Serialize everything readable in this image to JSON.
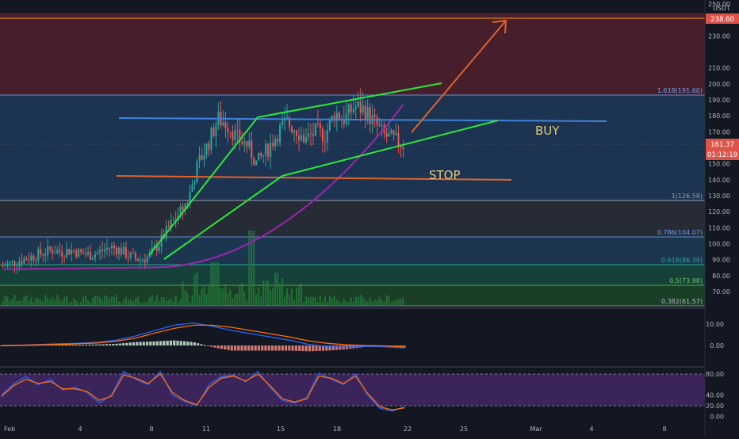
{
  "axis": {
    "currency": "USDT",
    "price_ticks": [
      "250.00",
      "240.00",
      "230.00",
      "210.00",
      "200.00",
      "190.00",
      "180.00",
      "170.00",
      "160.00",
      "150.00",
      "140.00",
      "130.00",
      "120.00",
      "110.00",
      "100.00",
      "90.00",
      "80.00",
      "70.00"
    ],
    "macd_ticks": [
      "10.00",
      "0.00"
    ],
    "stoch_ticks": [
      "80.00",
      "40.00",
      "20.00",
      "0.00"
    ],
    "x_ticks": [
      "Feb",
      "4",
      "8",
      "11",
      "15",
      "18",
      "22",
      "25",
      "Mar",
      "4",
      "8"
    ]
  },
  "price_labels": {
    "target": "238.60",
    "last": "161.37",
    "countdown": "01:12:19"
  },
  "fib_labels": [
    "1.618(191.60)",
    "1(126.58)",
    "0.786(104.07)",
    "0.618(86.39)",
    "0.5(73.98)",
    "0.382(61.57)"
  ],
  "annotations": {
    "buy": "BUY",
    "stop": "STOP"
  },
  "colors": {
    "bg": "#131722",
    "up": "#26a69a",
    "down": "#ef5350",
    "wedge": "#2ee63a",
    "resistance": "#3f83d9",
    "stop_line": "#e0622a",
    "arrow": "#e0622a",
    "ma": "#9c27b0",
    "macd": "#2962ff",
    "signal": "#ff6d00",
    "stoch_band": "#5c2f86"
  },
  "chart_data": [
    {
      "type": "candlestick",
      "x_range": [
        "Feb 1",
        "Mar 9"
      ],
      "ylim": [
        55,
        252
      ],
      "series": [
        {
          "name": "",
          "kind": "price",
          "x": [
            0,
            0.5,
            1,
            1.5,
            2,
            2.5,
            3,
            3.5,
            4,
            4.5,
            5,
            5.5,
            6,
            6.5,
            7,
            7.5,
            8,
            8.5,
            9,
            9.5,
            10,
            10.5,
            11,
            11.5,
            12,
            12.5,
            13,
            13.5,
            14,
            14.5,
            15,
            15.5,
            16,
            16.5,
            17,
            17.5,
            18,
            18.5,
            19,
            19.5,
            20,
            20.5
          ],
          "values": [
            86,
            88,
            90,
            92,
            94,
            96,
            95,
            96,
            94,
            93,
            95,
            98,
            96,
            92,
            90,
            92,
            100,
            110,
            118,
            128,
            150,
            162,
            178,
            175,
            166,
            162,
            150,
            158,
            168,
            176,
            172,
            165,
            170,
            168,
            182,
            178,
            186,
            184,
            176,
            168,
            165,
            162
          ]
        }
      ],
      "levels": [
        {
          "label": "1.618(191.60)",
          "value": 191.6
        },
        {
          "label": "1(126.58)",
          "value": 126.58
        },
        {
          "label": "0.786(104.07)",
          "value": 104.07
        },
        {
          "label": "0.618(86.39)",
          "value": 86.39
        },
        {
          "label": "0.5(73.98)",
          "value": 73.98
        },
        {
          "label": "0.382(61.57)",
          "value": 61.57
        }
      ],
      "target": 238.6,
      "last_price": 161.37
    },
    {
      "type": "line",
      "series": [
        {
          "name": "",
          "values": [
            0.0,
            0.2,
            0.5,
            0.8,
            1.0,
            1.5,
            2.5,
            4.5,
            7.0,
            9.5,
            10.5,
            9.0,
            7.0,
            5.5,
            4.0,
            2.5,
            0.5,
            -0.5,
            -0.8,
            -0.4,
            -0.6,
            -1.2
          ]
        },
        {
          "name": "",
          "values": [
            0.0,
            0.1,
            0.3,
            0.5,
            0.8,
            1.2,
            2.0,
            3.5,
            5.8,
            8.0,
            9.5,
            9.5,
            8.5,
            7.0,
            5.5,
            4.0,
            2.2,
            1.0,
            0.3,
            0.0,
            -0.2,
            -0.6
          ]
        }
      ],
      "ylim": [
        -4,
        16
      ]
    },
    {
      "type": "line",
      "series": [
        {
          "name": "",
          "values": [
            40,
            62,
            75,
            60,
            70,
            50,
            55,
            45,
            25,
            40,
            85,
            70,
            60,
            85,
            40,
            28,
            20,
            60,
            75,
            78,
            65,
            85,
            55,
            30,
            25,
            35,
            82,
            70,
            60,
            80,
            40,
            15,
            10,
            18
          ]
        },
        {
          "name": "",
          "values": [
            38,
            58,
            70,
            62,
            66,
            52,
            52,
            47,
            30,
            38,
            78,
            72,
            62,
            80,
            45,
            30,
            22,
            55,
            72,
            76,
            67,
            80,
            58,
            33,
            27,
            33,
            76,
            72,
            62,
            76,
            43,
            18,
            12,
            16
          ]
        }
      ],
      "ylim": [
        -5,
        100
      ],
      "band": [
        20,
        80
      ]
    }
  ]
}
